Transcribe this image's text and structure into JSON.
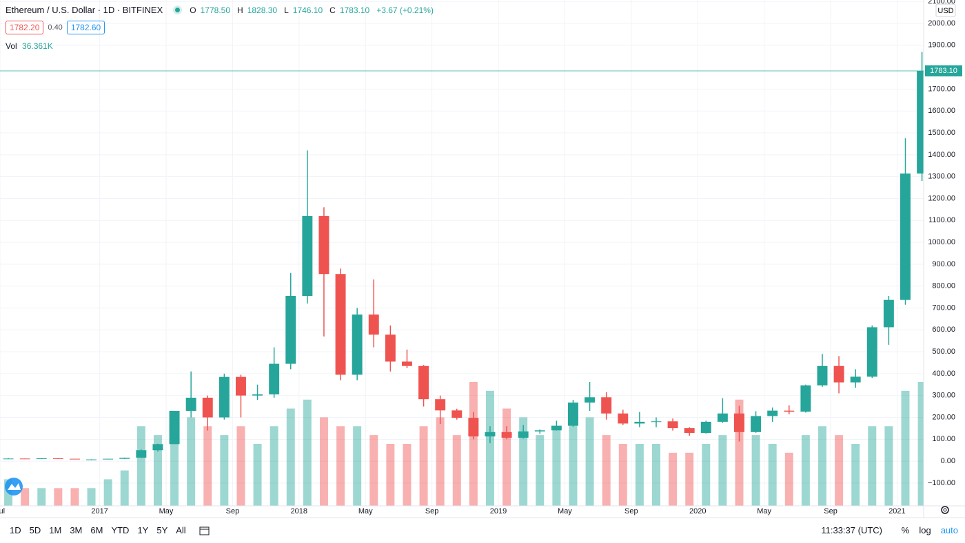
{
  "header": {
    "symbol": "Ethereum / U.S. Dollar · 1D · BITFINEX",
    "ohlc": [
      {
        "label": "O",
        "value": "1778.50"
      },
      {
        "label": "H",
        "value": "1828.30"
      },
      {
        "label": "L",
        "value": "1746.10"
      },
      {
        "label": "C",
        "value": "1783.10"
      }
    ],
    "change": "+3.67 (+0.21%)",
    "bid": "1782.20",
    "spread": "0.40",
    "ask": "1782.60",
    "volume_label": "Vol",
    "volume_value": "36.361K"
  },
  "chart_data": {
    "type": "candlestick",
    "currency": "USD",
    "up_color": "#26a69a",
    "down_color": "#ef5350",
    "grid": true,
    "last_price": {
      "value": 1783.1,
      "label": "1783.10"
    },
    "x": [
      0.5,
      1.5,
      2.5,
      3.5,
      4.5,
      5.5,
      6.5,
      7.5,
      8.5,
      9.5,
      10.5,
      11.5,
      12.5,
      13.5,
      14.5,
      15.5,
      16.5,
      17.5,
      18.5,
      19.5,
      20.5,
      21.5,
      22.5,
      23.5,
      24.5,
      25.5,
      26.5,
      27.5,
      28.5,
      29.5,
      30.5,
      31.5,
      32.5,
      33.5,
      34.5,
      35.5,
      36.5,
      37.5,
      38.5,
      39.5,
      40.5,
      41.5,
      42.5,
      43.5,
      44.5,
      45.5,
      46.5,
      47.5,
      48.5,
      49.5,
      50.5,
      51.5,
      52.5,
      53.5,
      54.5,
      55.5
    ],
    "open": [
      12,
      12,
      11,
      13,
      11,
      8,
      8,
      11,
      16,
      50,
      78,
      230,
      290,
      200,
      385,
      300,
      305,
      445,
      755,
      1120,
      855,
      395,
      670,
      578,
      455,
      435,
      283,
      232,
      198,
      113,
      133,
      107,
      136,
      141,
      162,
      268,
      292,
      218,
      172,
      180,
      182,
      151,
      129,
      180,
      218,
      133,
      206,
      231,
      226,
      346,
      435,
      360,
      386,
      612,
      737,
      1314
    ],
    "high": [
      14,
      12,
      14,
      14,
      11,
      9,
      11,
      16,
      55,
      80,
      230,
      410,
      300,
      400,
      395,
      350,
      520,
      860,
      1420,
      1160,
      880,
      700,
      830,
      620,
      510,
      440,
      300,
      240,
      225,
      160,
      160,
      165,
      145,
      185,
      280,
      362,
      315,
      235,
      225,
      200,
      195,
      155,
      185,
      288,
      253,
      228,
      245,
      255,
      350,
      490,
      480,
      420,
      620,
      755,
      1475,
      1870
    ],
    "low": [
      11,
      10,
      11,
      10,
      9,
      7,
      8,
      10,
      15,
      44,
      78,
      200,
      140,
      190,
      200,
      280,
      290,
      420,
      720,
      570,
      370,
      370,
      520,
      410,
      425,
      250,
      170,
      190,
      100,
      82,
      100,
      103,
      125,
      140,
      157,
      230,
      190,
      165,
      155,
      155,
      140,
      116,
      126,
      175,
      90,
      130,
      180,
      214,
      222,
      340,
      310,
      335,
      380,
      532,
      715,
      1280
    ],
    "close": [
      12,
      11,
      13,
      11,
      8,
      8,
      11,
      16,
      50,
      78,
      230,
      290,
      200,
      385,
      300,
      305,
      445,
      755,
      1120,
      855,
      395,
      670,
      578,
      455,
      435,
      283,
      232,
      198,
      113,
      133,
      107,
      136,
      141,
      162,
      268,
      292,
      218,
      172,
      180,
      182,
      151,
      129,
      180,
      218,
      133,
      206,
      231,
      226,
      346,
      435,
      360,
      386,
      612,
      737,
      1314,
      1783.1
    ],
    "volume": [
      3,
      2,
      2,
      2,
      2,
      2,
      3,
      4,
      9,
      8,
      8,
      10,
      9,
      8,
      9,
      7,
      9,
      11,
      12,
      10,
      9,
      9,
      8,
      7,
      7,
      9,
      10,
      8,
      14,
      13,
      11,
      10,
      8,
      9,
      10,
      10,
      8,
      7,
      7,
      7,
      6,
      6,
      7,
      8,
      12,
      8,
      7,
      6,
      8,
      9,
      8,
      7,
      9,
      9,
      13,
      14
    ],
    "xlim": [
      0,
      55.6
    ],
    "xticks": [
      {
        "value": 0,
        "label": "Jul"
      },
      {
        "value": 6,
        "label": "2017"
      },
      {
        "value": 10,
        "label": "May"
      },
      {
        "value": 14,
        "label": "Sep"
      },
      {
        "value": 18,
        "label": "2018"
      },
      {
        "value": 22,
        "label": "May"
      },
      {
        "value": 26,
        "label": "Sep"
      },
      {
        "value": 30,
        "label": "2019"
      },
      {
        "value": 34,
        "label": "May"
      },
      {
        "value": 38,
        "label": "Sep"
      },
      {
        "value": 42,
        "label": "2020"
      },
      {
        "value": 46,
        "label": "May"
      },
      {
        "value": 50,
        "label": "Sep"
      },
      {
        "value": 54,
        "label": "2021"
      }
    ],
    "ylim": [
      -204,
      2107
    ],
    "yticks": [
      {
        "value": 2100,
        "label": "2100.00"
      },
      {
        "value": 2000,
        "label": "2000.00"
      },
      {
        "value": 1900,
        "label": "1900.00"
      },
      {
        "value": 1700,
        "label": "1700.00"
      },
      {
        "value": 1600,
        "label": "1600.00"
      },
      {
        "value": 1500,
        "label": "1500.00"
      },
      {
        "value": 1400,
        "label": "1400.00"
      },
      {
        "value": 1300,
        "label": "1300.00"
      },
      {
        "value": 1200,
        "label": "1200.00"
      },
      {
        "value": 1100,
        "label": "1100.00"
      },
      {
        "value": 1000,
        "label": "1000.00"
      },
      {
        "value": 900,
        "label": "900.00"
      },
      {
        "value": 800,
        "label": "800.00"
      },
      {
        "value": 700,
        "label": "700.00"
      },
      {
        "value": 600,
        "label": "600.00"
      },
      {
        "value": 500,
        "label": "500.00"
      },
      {
        "value": 400,
        "label": "400.00"
      },
      {
        "value": 300,
        "label": "300.00"
      },
      {
        "value": 200,
        "label": "200.00"
      },
      {
        "value": 100,
        "label": "100.00"
      },
      {
        "value": 0,
        "label": "0.00"
      },
      {
        "value": -100,
        "label": "−100.00"
      }
    ]
  },
  "toolbar": {
    "ranges": [
      "1D",
      "5D",
      "1M",
      "3M",
      "6M",
      "YTD",
      "1Y",
      "5Y",
      "All"
    ],
    "time": "11:33:37 (UTC)",
    "options": [
      "%",
      "log",
      "auto"
    ]
  }
}
